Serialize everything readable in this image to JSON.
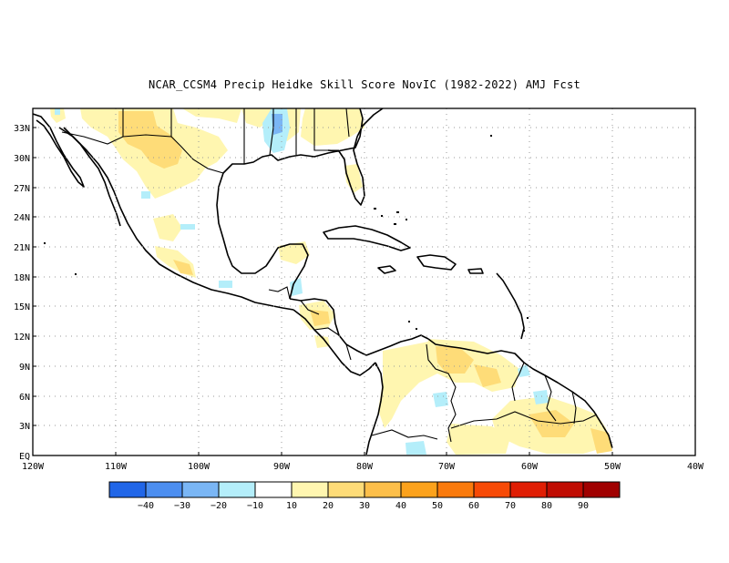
{
  "title": "NCAR_CCSM4 Precip Heidke Skill Score NovIC (1982-2022) AMJ Fcst",
  "map": {
    "lat_labels": [
      "EQ",
      "3N",
      "6N",
      "9N",
      "12N",
      "15N",
      "18N",
      "21N",
      "24N",
      "27N",
      "30N",
      "33N"
    ],
    "lon_labels": [
      "120W",
      "110W",
      "100W",
      "90W",
      "80W",
      "70W",
      "60W",
      "50W",
      "40W"
    ]
  },
  "colorbar": {
    "colors": [
      "#2166e8",
      "#4c8ef0",
      "#7ab6f5",
      "#b4eefa",
      "#ffffff",
      "#fff6b0",
      "#fedc78",
      "#fdbf4a",
      "#fca21c",
      "#fa7a0c",
      "#f74a06",
      "#e01e04",
      "#c00c02",
      "#a00000"
    ],
    "labels": [
      "-40",
      "-30",
      "-20",
      "-10",
      "10",
      "20",
      "30",
      "40",
      "50",
      "60",
      "70",
      "80",
      "90"
    ]
  }
}
